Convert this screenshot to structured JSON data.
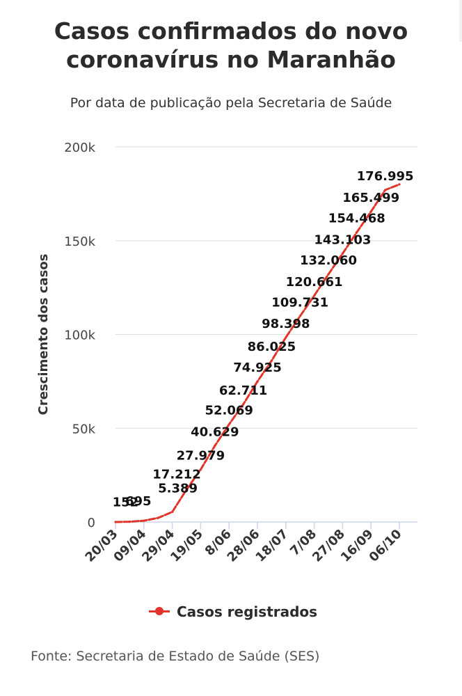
{
  "title_line1": "Casos confirmados do novo",
  "title_line2": "coronavírus no Maranhão",
  "subtitle": "Por data de publicação pela Secretaria de Saúde",
  "source": "Fonte: Secretaria de Estado de Saúde (SES)",
  "colors": {
    "series": "#e0352b",
    "grid": "#dddddd",
    "axis": "#ccd6eb",
    "text": "#222222"
  },
  "chart_data": {
    "type": "line",
    "title": "Casos confirmados do novo coronavírus no Maranhão",
    "subtitle": "Por data de publicação pela Secretaria de Saúde",
    "xlabel": "",
    "ylabel": "Crescimento dos casos",
    "ylim": [
      0,
      200000
    ],
    "y_ticks": [
      0,
      50000,
      100000,
      150000,
      200000
    ],
    "y_tick_labels": [
      "0",
      "50k",
      "100k",
      "150k",
      "200k"
    ],
    "x_tick_labels": [
      "20/03",
      "09/04",
      "29/04",
      "19/05",
      "8/06",
      "28/06",
      "18/07",
      "7/08",
      "27/08",
      "16/09",
      "06/10"
    ],
    "x": [
      "20/03",
      "30/03",
      "09/04",
      "19/04",
      "29/04",
      "09/05",
      "19/05",
      "29/05",
      "8/06",
      "18/06",
      "28/06",
      "08/07",
      "18/07",
      "28/07",
      "7/08",
      "17/08",
      "27/08",
      "06/09",
      "16/09",
      "26/09",
      "06/10"
    ],
    "grid": true,
    "legend_position": "bottom",
    "series": [
      {
        "name": "Casos registrados",
        "values": [
          2,
          152,
          695,
          2200,
          5389,
          17212,
          27979,
          40629,
          52069,
          62711,
          74925,
          86025,
          98398,
          109731,
          120661,
          132060,
          143103,
          154468,
          165499,
          176995,
          180000
        ]
      }
    ],
    "data_labels": [
      {
        "index": 1,
        "text": "152"
      },
      {
        "index": 2,
        "text": "695"
      },
      {
        "index": 4,
        "text": "5.389"
      },
      {
        "index": 5,
        "text": "17.212"
      },
      {
        "index": 6,
        "text": "27.979"
      },
      {
        "index": 7,
        "text": "40.629"
      },
      {
        "index": 8,
        "text": "52.069"
      },
      {
        "index": 9,
        "text": "62.711"
      },
      {
        "index": 10,
        "text": "74.925"
      },
      {
        "index": 11,
        "text": "86.025"
      },
      {
        "index": 12,
        "text": "98.398"
      },
      {
        "index": 13,
        "text": "109.731"
      },
      {
        "index": 14,
        "text": "120.661"
      },
      {
        "index": 15,
        "text": "132.060"
      },
      {
        "index": 16,
        "text": "143.103"
      },
      {
        "index": 17,
        "text": "154.468"
      },
      {
        "index": 18,
        "text": "165.499"
      },
      {
        "index": 19,
        "text": "176.995"
      }
    ]
  }
}
